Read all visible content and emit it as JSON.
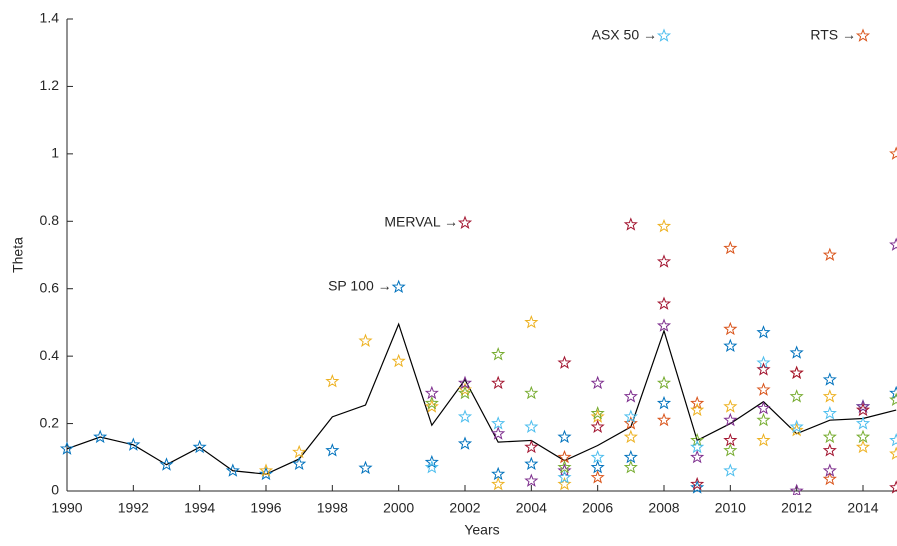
{
  "chart_data": {
    "type": "scatter",
    "xlabel": "Years",
    "ylabel": "Theta",
    "xlim": [
      1990,
      2015
    ],
    "ylim": [
      0,
      1.4
    ],
    "xticks": [
      1990,
      1992,
      1994,
      1996,
      1998,
      2000,
      2002,
      2004,
      2006,
      2008,
      2010,
      2012,
      2014
    ],
    "yticks": [
      0,
      0.2,
      0.4,
      0.6,
      0.8,
      1,
      1.2,
      1.4
    ],
    "line": {
      "color": "#000000",
      "x": [
        1990,
        1991,
        1992,
        1993,
        1994,
        1995,
        1996,
        1997,
        1998,
        1999,
        2000,
        2001,
        2002,
        2003,
        2004,
        2005,
        2006,
        2007,
        2008,
        2009,
        2010,
        2011,
        2012,
        2013,
        2014,
        2015
      ],
      "values": [
        0.125,
        0.16,
        0.137,
        0.078,
        0.13,
        0.06,
        0.05,
        0.095,
        0.22,
        0.255,
        0.495,
        0.195,
        0.33,
        0.145,
        0.15,
        0.09,
        0.135,
        0.19,
        0.475,
        0.15,
        0.2,
        0.265,
        0.17,
        0.21,
        0.215,
        0.24
      ]
    },
    "series": [
      {
        "color": "#0072bd",
        "x": [
          1990,
          1991,
          1992,
          1993,
          1994,
          1995,
          1996,
          1997,
          1998,
          1999,
          2000,
          2001,
          2002,
          2003,
          2004,
          2005,
          2006,
          2007,
          2008,
          2009,
          2010,
          2011,
          2012,
          2013,
          2014,
          2015
        ],
        "values": [
          0.125,
          0.16,
          0.137,
          0.078,
          0.13,
          0.06,
          0.05,
          0.08,
          0.12,
          0.068,
          0.605,
          0.085,
          0.14,
          0.05,
          0.08,
          0.16,
          0.07,
          0.1,
          0.26,
          0.01,
          0.43,
          0.47,
          0.41,
          0.33,
          0.25,
          0.29
        ]
      },
      {
        "color": "#d95319",
        "x": [
          2005,
          2006,
          2007,
          2008,
          2009,
          2010,
          2010,
          2011,
          2012,
          2013,
          2013,
          2014,
          2015
        ],
        "values": [
          0.1,
          0.04,
          0.2,
          0.21,
          0.26,
          0.48,
          0.72,
          0.3,
          0.35,
          0.035,
          0.7,
          1.35,
          1.0
        ]
      },
      {
        "color": "#edb120",
        "x": [
          1996,
          1997,
          1998,
          1999,
          2000,
          2001,
          2002,
          2003,
          2004,
          2005,
          2006,
          2007,
          2008,
          2009,
          2010,
          2011,
          2012,
          2013,
          2014,
          2015
        ],
        "values": [
          0.06,
          0.115,
          0.325,
          0.445,
          0.385,
          0.25,
          0.3,
          0.02,
          0.5,
          0.02,
          0.22,
          0.16,
          0.785,
          0.24,
          0.25,
          0.15,
          0.18,
          0.28,
          0.13,
          0.11
        ]
      },
      {
        "color": "#7e2f8e",
        "x": [
          2001,
          2002,
          2003,
          2004,
          2005,
          2006,
          2007,
          2008,
          2009,
          2010,
          2011,
          2012,
          2013,
          2014,
          2015
        ],
        "values": [
          0.29,
          0.32,
          0.17,
          0.03,
          0.06,
          0.32,
          0.28,
          0.49,
          0.1,
          0.21,
          0.245,
          0.0,
          0.06,
          0.25,
          0.73
        ]
      },
      {
        "color": "#77ac30",
        "x": [
          2001,
          2002,
          2003,
          2004,
          2005,
          2006,
          2007,
          2008,
          2009,
          2010,
          2011,
          2012,
          2013,
          2014,
          2015
        ],
        "values": [
          0.26,
          0.29,
          0.405,
          0.29,
          0.07,
          0.23,
          0.07,
          0.32,
          0.15,
          0.12,
          0.21,
          0.28,
          0.16,
          0.16,
          0.27
        ]
      },
      {
        "color": "#4dbeee",
        "x": [
          2001,
          2002,
          2003,
          2004,
          2005,
          2006,
          2007,
          2008,
          2009,
          2010,
          2011,
          2012,
          2013,
          2014,
          2015
        ],
        "values": [
          0.07,
          0.22,
          0.2,
          0.19,
          0.04,
          0.1,
          0.22,
          1.35,
          0.13,
          0.06,
          0.38,
          0.19,
          0.23,
          0.2,
          0.15
        ]
      },
      {
        "color": "#a2142f",
        "x": [
          2002,
          2003,
          2004,
          2005,
          2006,
          2007,
          2008,
          2008,
          2009,
          2010,
          2011,
          2012,
          2013,
          2014,
          2015
        ],
        "values": [
          0.795,
          0.32,
          0.13,
          0.38,
          0.19,
          0.79,
          0.68,
          0.555,
          0.02,
          0.15,
          0.36,
          0.35,
          0.12,
          0.24,
          0.01
        ]
      }
    ],
    "annotations": [
      {
        "text": "ASX 50 →",
        "x": 2008,
        "y": 1.35
      },
      {
        "text": "RTS →",
        "x": 2014,
        "y": 1.35
      },
      {
        "text": "MERVAL →",
        "x": 2002,
        "y": 0.795
      },
      {
        "text": "SP 100 →",
        "x": 2000,
        "y": 0.605
      }
    ]
  }
}
